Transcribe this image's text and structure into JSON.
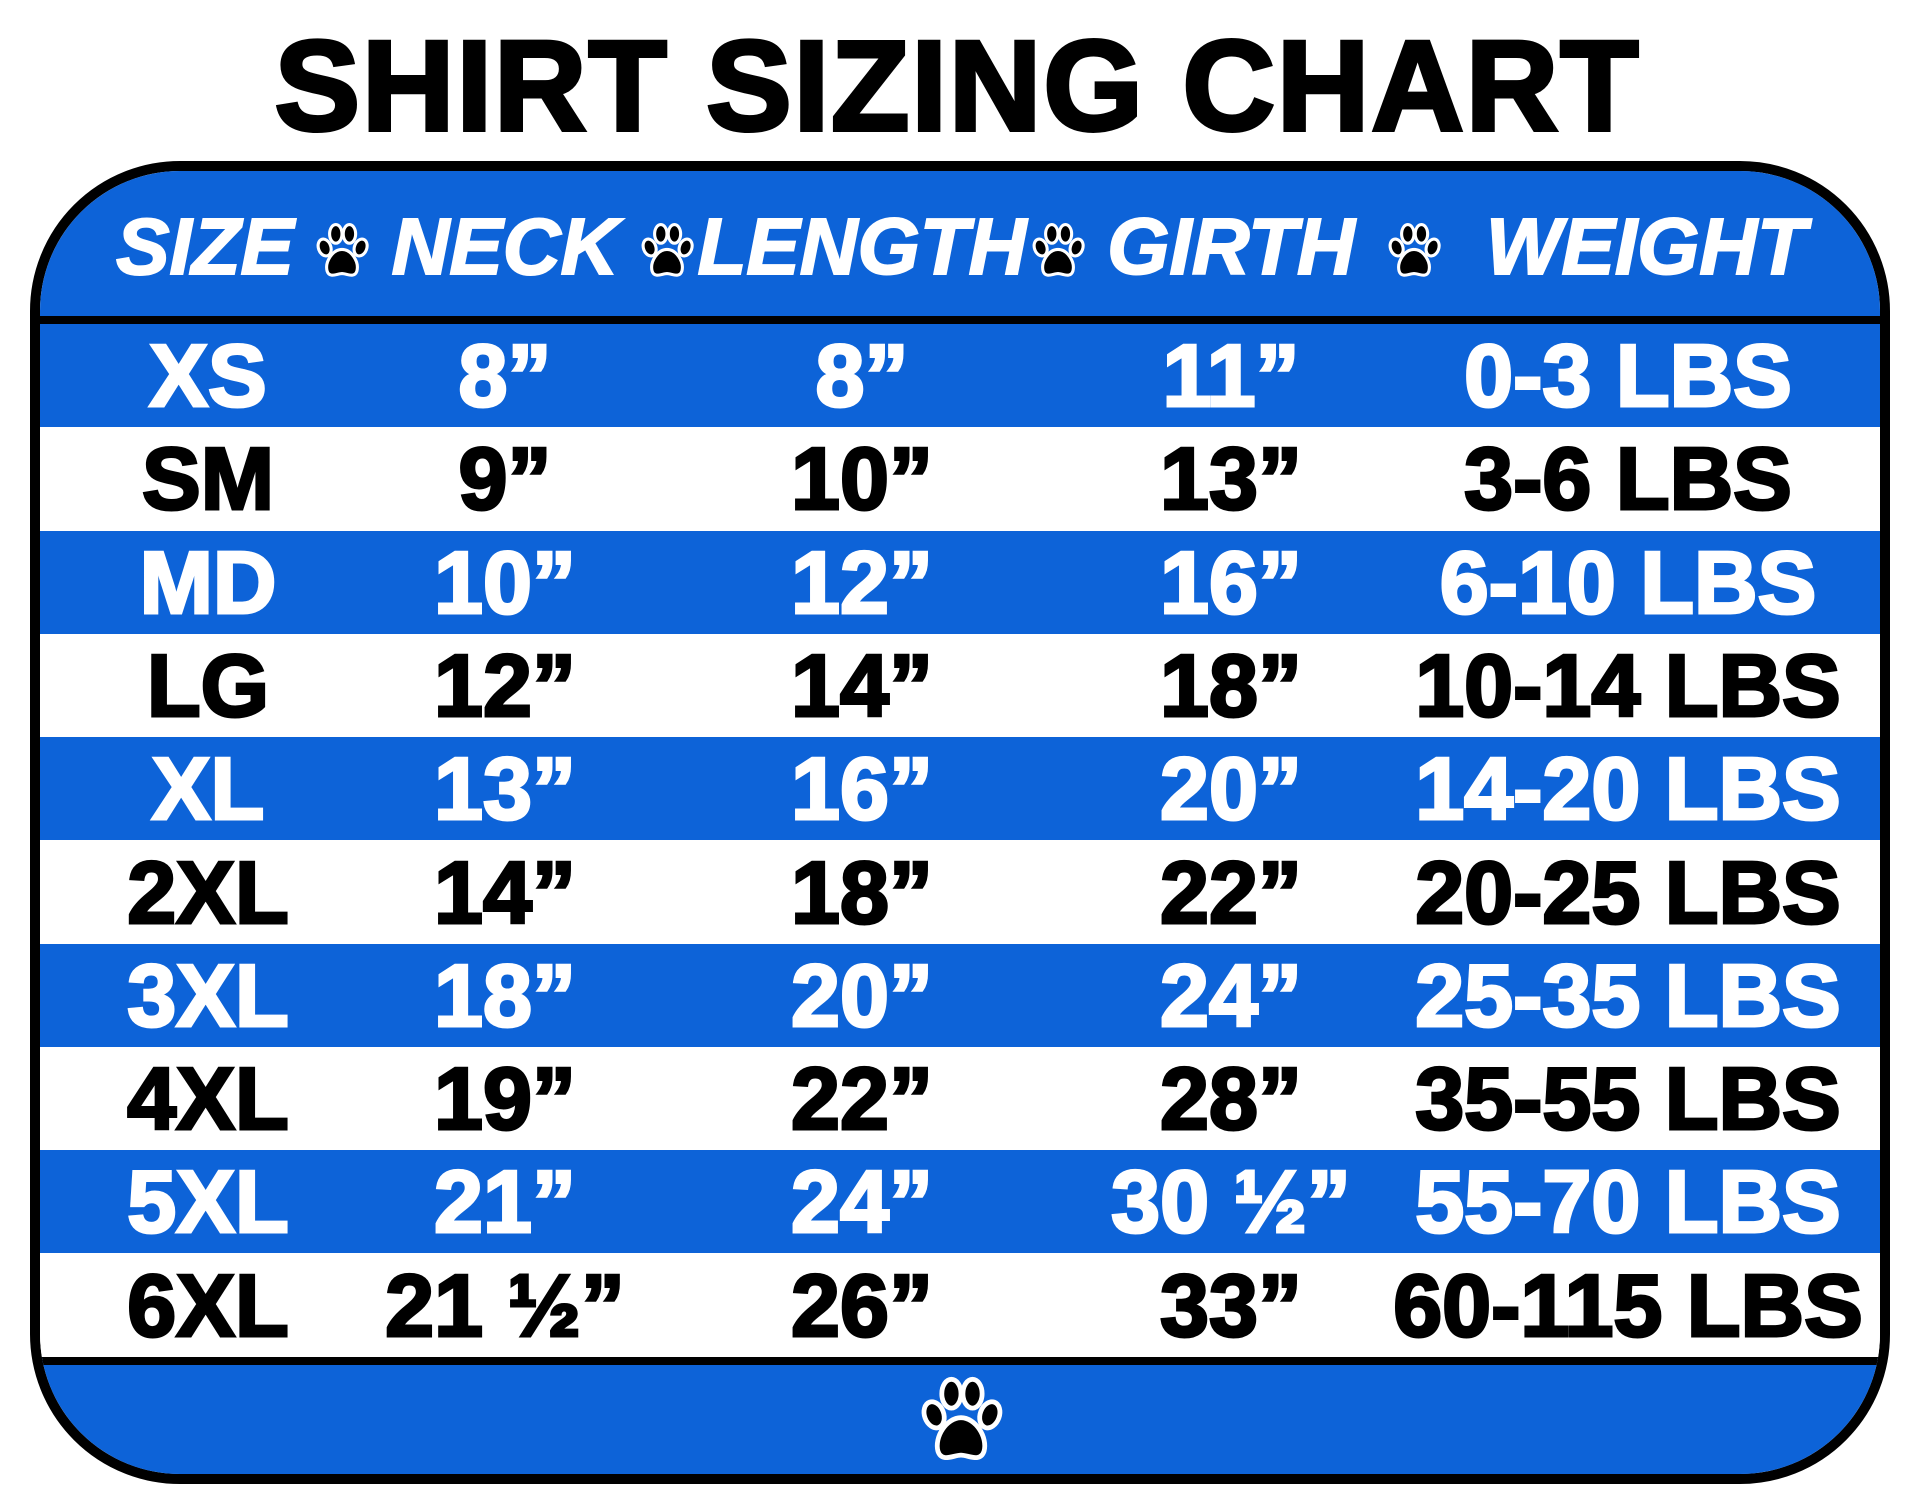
{
  "title": "SHIRT SIZING CHART",
  "colors": {
    "blue": "#0d63d8",
    "border": "#000000",
    "white": "#ffffff"
  },
  "header": {
    "columns": [
      "SIZE",
      "NECK",
      "LENGTH",
      "GIRTH",
      "WEIGHT"
    ],
    "separator_icon": "paw-print-icon"
  },
  "rows": [
    [
      "XS",
      "8”",
      "8”",
      "11”",
      "0-3 LBS"
    ],
    [
      "SM",
      "9”",
      "10”",
      "13”",
      "3-6 LBS"
    ],
    [
      "MD",
      "10”",
      "12”",
      "16”",
      "6-10 LBS"
    ],
    [
      "LG",
      "12”",
      "14”",
      "18”",
      "10-14 LBS"
    ],
    [
      "XL",
      "13”",
      "16”",
      "20”",
      "14-20 LBS"
    ],
    [
      "2XL",
      "14”",
      "18”",
      "22”",
      "20-25 LBS"
    ],
    [
      "3XL",
      "18”",
      "20”",
      "24”",
      "25-35 LBS"
    ],
    [
      "4XL",
      "19”",
      "22”",
      "28”",
      "35-55 LBS"
    ],
    [
      "5XL",
      "21”",
      "24”",
      "30 ½”",
      "55-70 LBS"
    ],
    [
      "6XL",
      "21 ½”",
      "26”",
      "33”",
      "60-115 LBS"
    ]
  ],
  "footer": {
    "icon": "paw-print-icon"
  }
}
